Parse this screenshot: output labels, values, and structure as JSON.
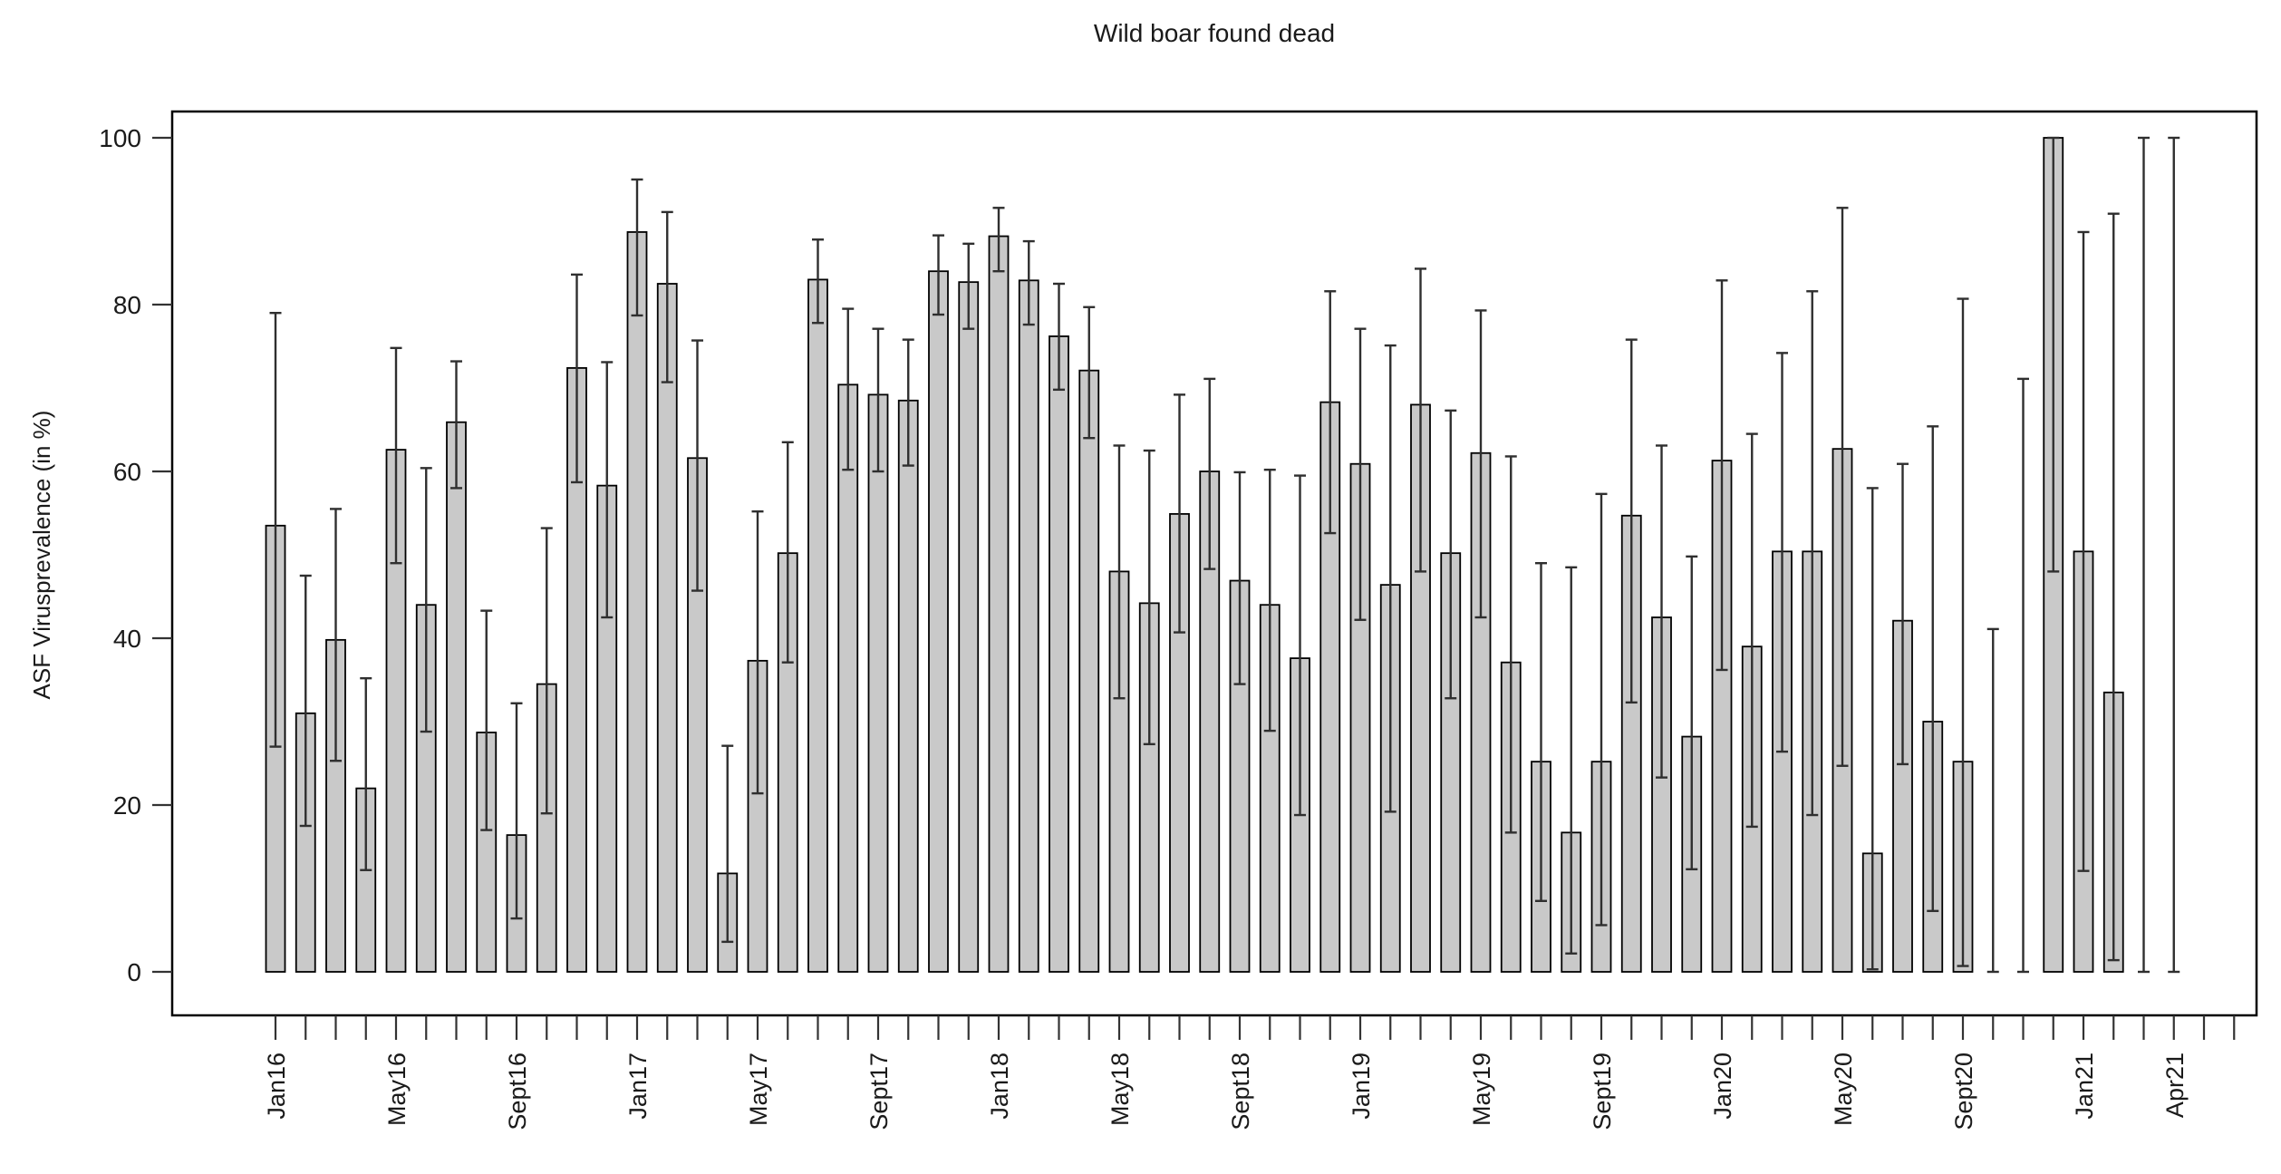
{
  "chart_data": {
    "type": "bar",
    "title": "Wild boar found dead",
    "ylabel": "ASF Virusprevalence (in %)",
    "xlabel": "",
    "ylim": [
      0,
      100
    ],
    "yticks": [
      0,
      20,
      40,
      60,
      80,
      100
    ],
    "grid": false,
    "legend": "none",
    "bar_color": "#c9c9c9",
    "bar_border_color": "#000000",
    "error_bar_color": "#2f2f2f",
    "axis_color": "#000000",
    "error_bars": true,
    "x_axis_labels": [
      {
        "index": 0,
        "label": "Jan16"
      },
      {
        "index": 4,
        "label": "May16"
      },
      {
        "index": 8,
        "label": "Sept16"
      },
      {
        "index": 12,
        "label": "Jan17"
      },
      {
        "index": 16,
        "label": "May17"
      },
      {
        "index": 20,
        "label": "Sept17"
      },
      {
        "index": 24,
        "label": "Jan18"
      },
      {
        "index": 28,
        "label": "May18"
      },
      {
        "index": 32,
        "label": "Sept18"
      },
      {
        "index": 36,
        "label": "Jan19"
      },
      {
        "index": 40,
        "label": "May19"
      },
      {
        "index": 44,
        "label": "Sept19"
      },
      {
        "index": 48,
        "label": "Jan20"
      },
      {
        "index": 52,
        "label": "May20"
      },
      {
        "index": 56,
        "label": "Sept20"
      },
      {
        "index": 60,
        "label": "Jan21"
      },
      {
        "index": 63,
        "label": "Apr21"
      }
    ],
    "months": [
      {
        "value": 53.5,
        "lo": 27.0,
        "hi": 79.0
      },
      {
        "value": 31.0,
        "lo": 17.5,
        "hi": 47.5
      },
      {
        "value": 39.8,
        "lo": 25.3,
        "hi": 55.5
      },
      {
        "value": 22.0,
        "lo": 12.2,
        "hi": 35.2
      },
      {
        "value": 62.6,
        "lo": 49.0,
        "hi": 74.8
      },
      {
        "value": 44.0,
        "lo": 28.8,
        "hi": 60.4
      },
      {
        "value": 65.9,
        "lo": 58.0,
        "hi": 73.2
      },
      {
        "value": 28.7,
        "lo": 17.0,
        "hi": 43.3
      },
      {
        "value": 16.4,
        "lo": 6.4,
        "hi": 32.2
      },
      {
        "value": 34.5,
        "lo": 19.0,
        "hi": 53.2
      },
      {
        "value": 72.4,
        "lo": 58.7,
        "hi": 83.6
      },
      {
        "value": 58.3,
        "lo": 42.5,
        "hi": 73.1
      },
      {
        "value": 88.7,
        "lo": 78.7,
        "hi": 95.0
      },
      {
        "value": 82.5,
        "lo": 70.7,
        "hi": 91.1
      },
      {
        "value": 61.6,
        "lo": 45.7,
        "hi": 75.7
      },
      {
        "value": 11.8,
        "lo": 3.6,
        "hi": 27.1
      },
      {
        "value": 37.3,
        "lo": 21.4,
        "hi": 55.2
      },
      {
        "value": 50.2,
        "lo": 37.1,
        "hi": 63.5
      },
      {
        "value": 83.0,
        "lo": 77.8,
        "hi": 87.8
      },
      {
        "value": 70.4,
        "lo": 60.2,
        "hi": 79.5
      },
      {
        "value": 69.2,
        "lo": 60.0,
        "hi": 77.1
      },
      {
        "value": 68.5,
        "lo": 60.7,
        "hi": 75.8
      },
      {
        "value": 84.0,
        "lo": 78.8,
        "hi": 88.3
      },
      {
        "value": 82.7,
        "lo": 77.1,
        "hi": 87.3
      },
      {
        "value": 88.2,
        "lo": 84.0,
        "hi": 91.6
      },
      {
        "value": 82.9,
        "lo": 77.6,
        "hi": 87.6
      },
      {
        "value": 76.2,
        "lo": 69.8,
        "hi": 82.5
      },
      {
        "value": 72.1,
        "lo": 64.0,
        "hi": 79.7
      },
      {
        "value": 48.0,
        "lo": 32.8,
        "hi": 63.1
      },
      {
        "value": 44.2,
        "lo": 27.3,
        "hi": 62.5
      },
      {
        "value": 54.9,
        "lo": 40.7,
        "hi": 69.2
      },
      {
        "value": 60.0,
        "lo": 48.3,
        "hi": 71.1
      },
      {
        "value": 46.9,
        "lo": 34.5,
        "hi": 59.9
      },
      {
        "value": 44.0,
        "lo": 28.9,
        "hi": 60.2
      },
      {
        "value": 37.6,
        "lo": 18.8,
        "hi": 59.5
      },
      {
        "value": 68.3,
        "lo": 52.6,
        "hi": 81.6
      },
      {
        "value": 60.9,
        "lo": 42.2,
        "hi": 77.1
      },
      {
        "value": 46.4,
        "lo": 19.2,
        "hi": 75.1
      },
      {
        "value": 68.0,
        "lo": 48.0,
        "hi": 84.3
      },
      {
        "value": 50.2,
        "lo": 32.8,
        "hi": 67.3
      },
      {
        "value": 62.2,
        "lo": 42.5,
        "hi": 79.3
      },
      {
        "value": 37.1,
        "lo": 16.7,
        "hi": 61.8
      },
      {
        "value": 25.2,
        "lo": 8.5,
        "hi": 49.0
      },
      {
        "value": 16.7,
        "lo": 2.2,
        "hi": 48.5
      },
      {
        "value": 25.2,
        "lo": 5.6,
        "hi": 57.3
      },
      {
        "value": 54.7,
        "lo": 32.3,
        "hi": 75.8
      },
      {
        "value": 42.5,
        "lo": 23.3,
        "hi": 63.1
      },
      {
        "value": 28.2,
        "lo": 12.3,
        "hi": 49.8
      },
      {
        "value": 61.3,
        "lo": 36.2,
        "hi": 82.9
      },
      {
        "value": 39.0,
        "lo": 17.4,
        "hi": 64.5
      },
      {
        "value": 50.4,
        "lo": 26.4,
        "hi": 74.2
      },
      {
        "value": 50.4,
        "lo": 18.8,
        "hi": 81.6
      },
      {
        "value": 62.7,
        "lo": 24.7,
        "hi": 91.6
      },
      {
        "value": 14.2,
        "lo": 0.3,
        "hi": 58.0
      },
      {
        "value": 42.1,
        "lo": 24.9,
        "hi": 60.9
      },
      {
        "value": 30.0,
        "lo": 7.3,
        "hi": 65.4
      },
      {
        "value": 25.2,
        "lo": 0.7,
        "hi": 80.7
      },
      {
        "value": 0,
        "lo": 0,
        "hi": 41.1
      },
      {
        "value": 0,
        "lo": 0,
        "hi": 71.1
      },
      {
        "value": 100,
        "lo": 48.0,
        "hi": 100
      },
      {
        "value": 50.4,
        "lo": 12.1,
        "hi": 88.7
      },
      {
        "value": 33.5,
        "lo": 1.4,
        "hi": 90.9
      },
      {
        "value": 0,
        "lo": 0,
        "hi": 100
      },
      {
        "value": 0,
        "lo": 0,
        "hi": 100
      }
    ]
  }
}
